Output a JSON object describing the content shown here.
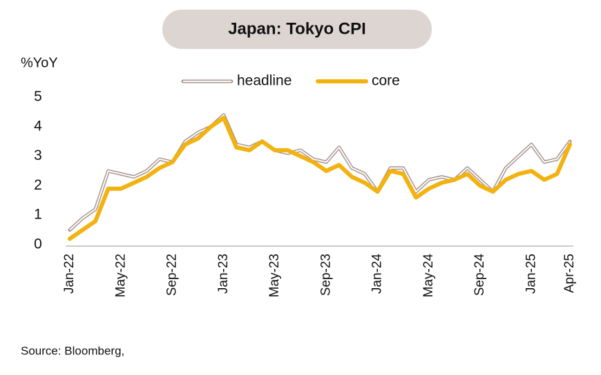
{
  "chart_data": {
    "type": "line",
    "title": "Japan: Tokyo CPI",
    "y_label": "%YoY",
    "source": "Source: Bloomberg,",
    "categories": [
      "Jan-22",
      null,
      null,
      null,
      "May-22",
      null,
      null,
      null,
      "Sep-22",
      null,
      null,
      null,
      "Jan-23",
      null,
      null,
      null,
      "May-23",
      null,
      null,
      null,
      "Sep-23",
      null,
      null,
      null,
      "Jan-24",
      null,
      null,
      null,
      "May-24",
      null,
      null,
      null,
      "Sep-24",
      null,
      null,
      null,
      "Jan-25",
      null,
      null,
      "Apr-25"
    ],
    "series": [
      {
        "name": "headline",
        "color": "#a8948f",
        "values": [
          0.5,
          0.9,
          1.2,
          2.5,
          2.4,
          2.3,
          2.5,
          2.9,
          2.8,
          3.5,
          3.8,
          4.0,
          4.4,
          3.4,
          3.3,
          3.5,
          3.2,
          3.1,
          3.2,
          2.9,
          2.8,
          3.3,
          2.6,
          2.4,
          1.8,
          2.6,
          2.6,
          1.8,
          2.2,
          2.3,
          2.2,
          2.6,
          2.2,
          1.8,
          2.6,
          3.0,
          3.4,
          2.8,
          2.9,
          3.5
        ]
      },
      {
        "name": "core",
        "color": "#f2b20f",
        "values": [
          0.2,
          0.5,
          0.8,
          1.9,
          1.9,
          2.1,
          2.3,
          2.6,
          2.8,
          3.4,
          3.6,
          4.0,
          4.3,
          3.3,
          3.2,
          3.5,
          3.2,
          3.2,
          3.0,
          2.8,
          2.5,
          2.7,
          2.3,
          2.1,
          1.8,
          2.5,
          2.4,
          1.6,
          1.9,
          2.1,
          2.2,
          2.4,
          2.0,
          1.8,
          2.2,
          2.4,
          2.5,
          2.2,
          2.4,
          3.4
        ]
      }
    ],
    "ylim": [
      0,
      5
    ],
    "yticks": [
      0,
      1,
      2,
      3,
      4,
      5
    ],
    "grid": false
  }
}
